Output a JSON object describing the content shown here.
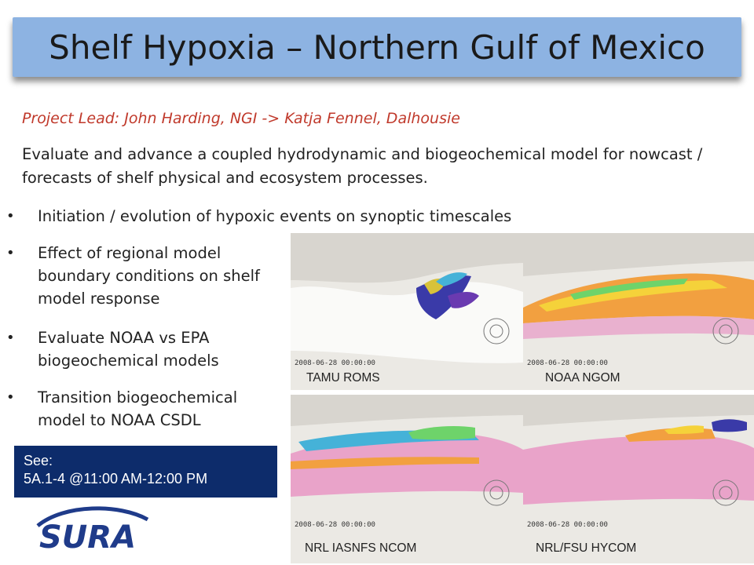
{
  "title": "Shelf Hypoxia – Northern Gulf of Mexico",
  "project_lead": "Project Lead: John Harding, NGI -> Katja Fennel, Dalhousie",
  "description": "Evaluate and advance a coupled hydrodynamic and biogeochemical model for nowcast  / forecasts of shelf physical and ecosystem processes.",
  "bullets": [
    "Initiation / evolution of hypoxic events on synoptic timescales",
    "Effect of regional model boundary conditions on shelf model response",
    "Evaluate NOAA vs EPA biogeochemical models",
    "Transition biogeochemical model to NOAA CSDL"
  ],
  "see_box": {
    "line1": "See:",
    "line2": "5A.1-4  @11:00 AM-12:00 PM"
  },
  "logo_text": "SURA",
  "panels": [
    {
      "label": "TAMU ROMS",
      "date": "2008-06-28 00:00:00"
    },
    {
      "label": "NOAA NGOM",
      "date": "2008-06-28 00:00:00"
    },
    {
      "label": "NRL IASNFS NCOM",
      "date": "2008-06-28 00:00:00"
    },
    {
      "label": "NRL/FSU HYCOM",
      "date": "2008-06-28 00:00:00"
    }
  ],
  "colors": {
    "title_bar": "#8db3e2",
    "lead_text": "#c0392b",
    "see_box": "#0d2c6b",
    "logo": "#1f3b8a"
  }
}
